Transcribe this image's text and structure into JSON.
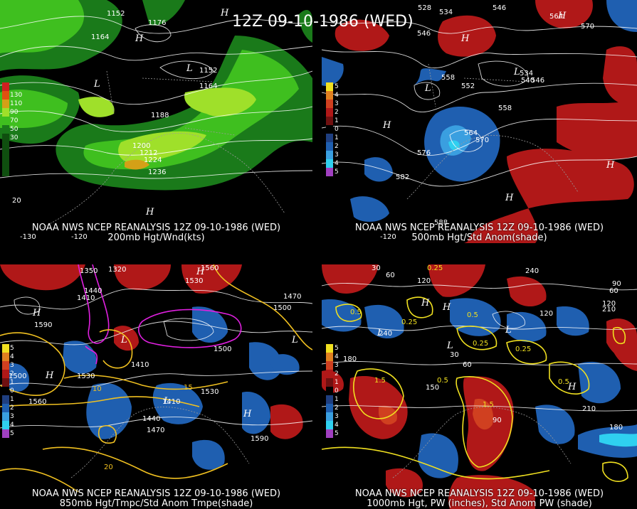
{
  "title": "12Z 09-10-1986 (WED)",
  "panels": [
    {
      "caption_line1": "NOAA NWS NCEP REANALYSIS 12Z 09-10-1986 (WED)",
      "caption_line2": "200mb Hgt/Wnd(kts)",
      "legend": [
        "130",
        "110",
        "90",
        "70",
        "50",
        "30"
      ],
      "contour_labels": [
        "1152",
        "1164",
        "1176",
        "1152",
        "1164",
        "1188",
        "1200",
        "1212",
        "1224",
        "1236"
      ],
      "lon_labels": [
        "-130",
        "-120"
      ],
      "extra_labels": [
        "20"
      ]
    },
    {
      "caption_line1": "NOAA NWS NCEP REANALYSIS 12Z 09-10-1986 (WED)",
      "caption_line2": "500mb Hgt/Std Anom(shade)",
      "legend": [
        "5",
        "4",
        "3",
        "2",
        "1",
        "0",
        "1",
        "2",
        "3",
        "4",
        "5"
      ],
      "contour_labels": [
        "528",
        "534",
        "546",
        "546",
        "564",
        "570",
        "558",
        "552",
        "534",
        "540",
        "546",
        "558",
        "564",
        "570",
        "576",
        "582",
        "588"
      ],
      "lon_labels": [
        "-120"
      ]
    },
    {
      "caption_line1": "NOAA NWS NCEP REANALYSIS 12Z 09-10-1986 (WED)",
      "caption_line2": "850mb Hgt/Tmpc/Std Anom Tmpe(shade)",
      "legend": [
        "5",
        "4",
        "3",
        "2",
        "1",
        "0",
        "1",
        "2",
        "3",
        "4",
        "5"
      ],
      "contour_labels": [
        "1320",
        "1350",
        "1440",
        "1410",
        "1530",
        "1560",
        "1470",
        "1500",
        "1590",
        "1500",
        "1410",
        "1530",
        "1560",
        "1440",
        "1410",
        "1530",
        "1470",
        "1590",
        "1500"
      ],
      "temp_labels": [
        "10",
        "15",
        "20"
      ]
    },
    {
      "caption_line1": "NOAA NWS NCEP REANALYSIS 12Z 09-10-1986 (WED)",
      "caption_line2": "1000mb Hgt, PW (inches), Std Anom PW (shade)",
      "legend": [
        "5",
        "4",
        "3",
        "2",
        "1",
        "0",
        "1",
        "2",
        "3",
        "4",
        "5"
      ],
      "contour_labels": [
        "30",
        "60",
        "120",
        "240",
        "60",
        "90",
        "120",
        "180",
        "210",
        "240",
        "30",
        "60",
        "90",
        "120",
        "150",
        "180",
        "210"
      ],
      "pw_labels": [
        "0.25",
        "0.5",
        "0.25",
        "0.5",
        "0.25",
        "0.25",
        "0.5",
        "1.5",
        "0.5",
        "1.5"
      ]
    }
  ],
  "colors": {
    "wind_dark": "#1a7a1a",
    "wind_mid": "#3fbf1f",
    "wind_light": "#9fe02a",
    "wind_peak": "#d4a017",
    "anom_pos": "#b01818",
    "anom_neg": "#1f5fb0",
    "anom_neg_strong": "#2fd0f0",
    "temp_contour": "#f0c020",
    "magenta": "#e020e0",
    "pw_contour": "#f0e020"
  }
}
